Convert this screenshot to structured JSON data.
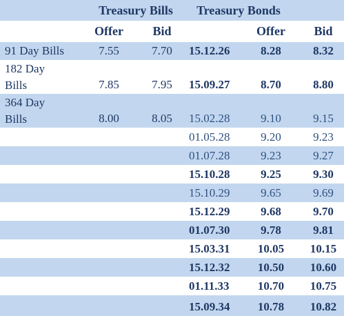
{
  "header": {
    "groups": [
      "Treasury Bills",
      "Treasury Bonds"
    ],
    "columns": [
      "Offer",
      "Bid",
      "Offer",
      "Bid"
    ]
  },
  "bills": [
    [
      "91 Day Bills",
      "7.55",
      "7.70"
    ],
    [
      "182 Day\nBills",
      "7.85",
      "7.95"
    ],
    [
      "364 Day\nBills",
      "8.00",
      "8.05"
    ]
  ],
  "bonds": [
    [
      "15.12.26",
      "8.28",
      "8.32"
    ],
    [
      "15.09.27",
      "8.70",
      "8.80"
    ],
    [
      "15.02.28",
      "9.10",
      "9.15"
    ],
    [
      "01.05.28",
      "9.20",
      "9.23"
    ],
    [
      "01.07.28",
      "9.23",
      "9.27"
    ],
    [
      "15.10.28",
      "9.25",
      "9.30"
    ],
    [
      "15.10.29",
      "9.65",
      "9.69"
    ],
    [
      "15.12.29",
      "9.68",
      "9.70"
    ],
    [
      "01.07.30",
      "9.78",
      "9.81"
    ],
    [
      "15.03.31",
      "10.05",
      "10.15"
    ],
    [
      "15.12.32",
      "10.50",
      "10.60"
    ],
    [
      "01.11.33",
      "10.70",
      "10.75"
    ],
    [
      "15.09.34",
      "10.78",
      "10.82"
    ]
  ]
}
